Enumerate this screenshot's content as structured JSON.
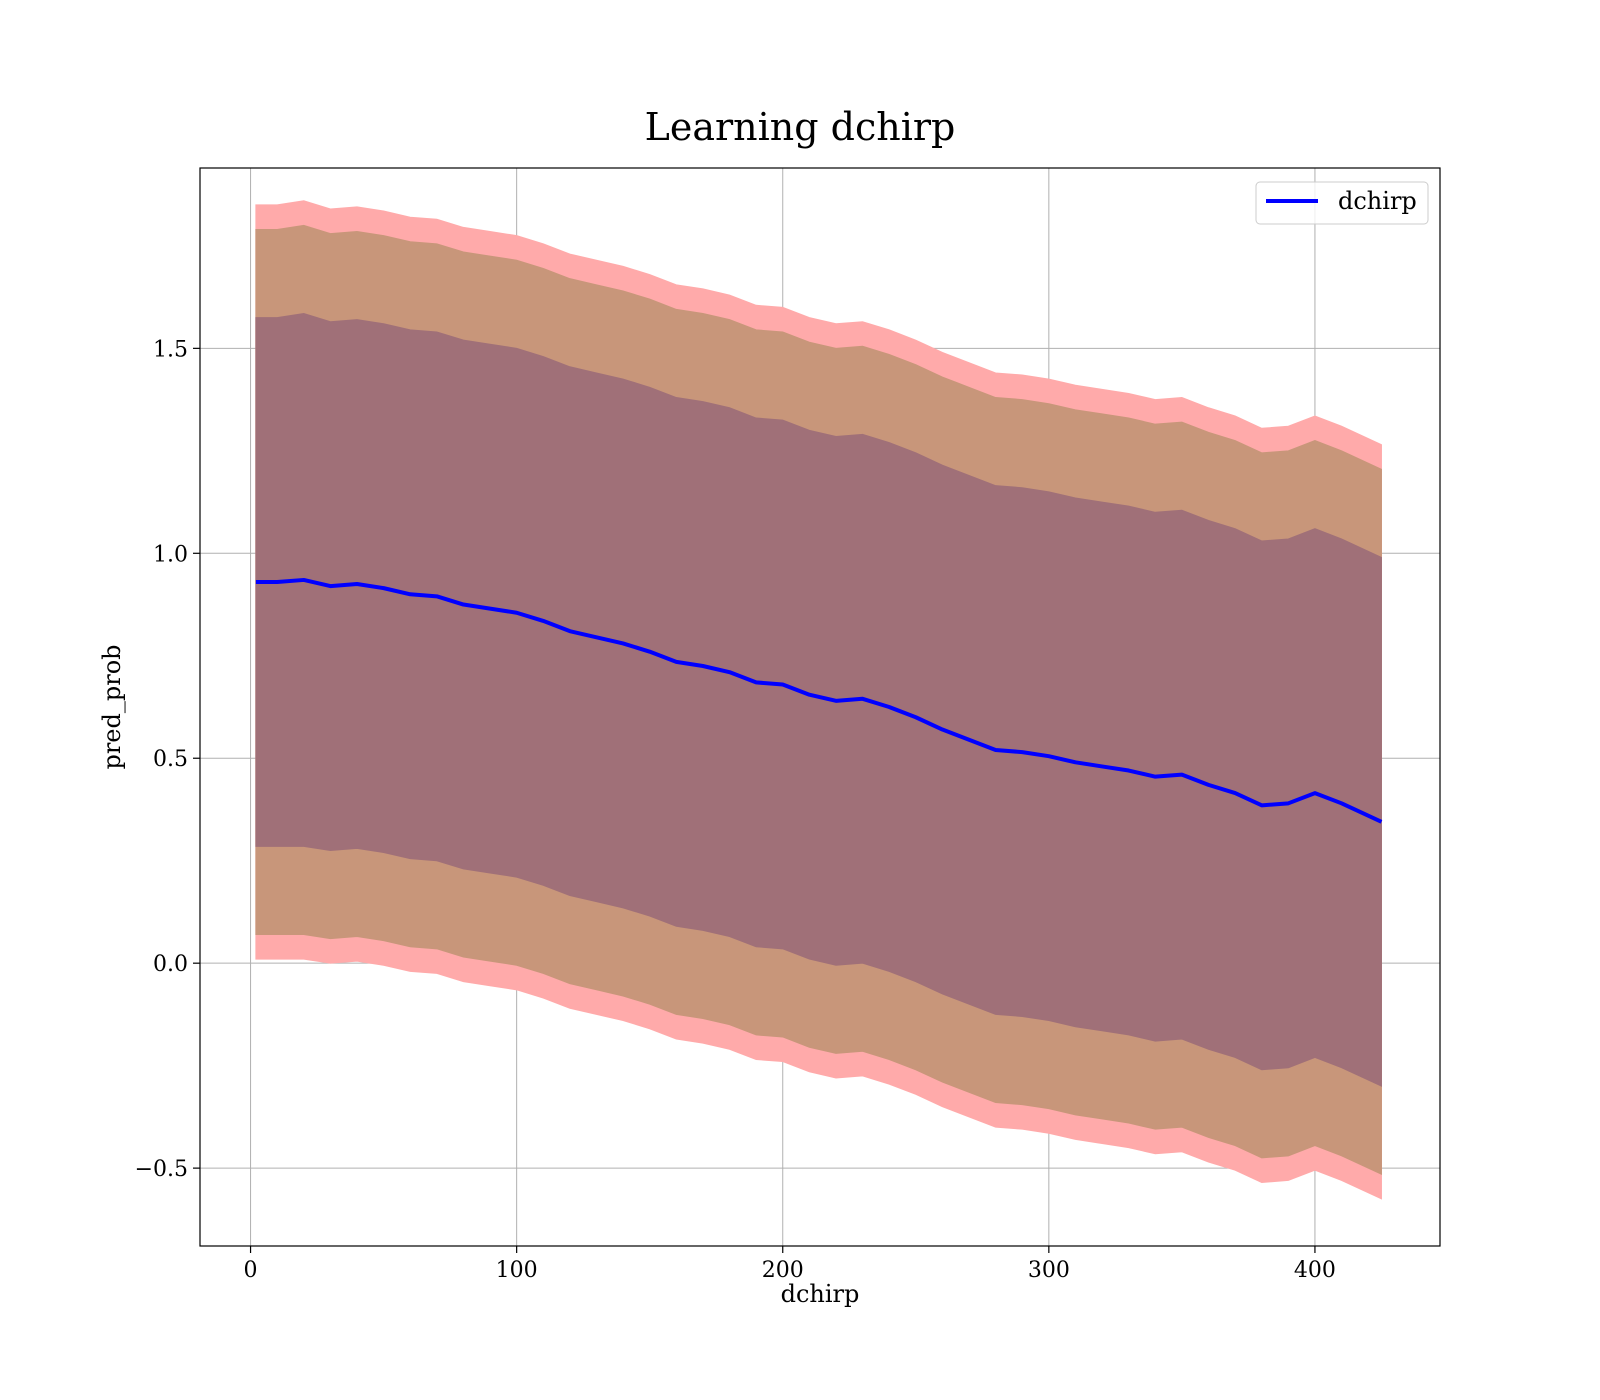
{
  "chart_data": {
    "type": "line",
    "title": "Learning dchirp",
    "xlabel": "dchirp",
    "ylabel": "pred_prob",
    "xlim": [
      -19,
      447
    ],
    "ylim": [
      -0.69,
      1.94
    ],
    "xticks": [
      0,
      100,
      200,
      300,
      400
    ],
    "xtick_labels": [
      "0",
      "100",
      "200",
      "300",
      "400"
    ],
    "yticks": [
      -0.5,
      0.0,
      0.5,
      1.0,
      1.5
    ],
    "ytick_labels": [
      "−0.5",
      "0.0",
      "0.5",
      "1.0",
      "1.5"
    ],
    "grid": true,
    "legend": {
      "position": "top-right",
      "entries": [
        "dchirp"
      ]
    },
    "colors": {
      "mean_line": "#0000ff",
      "band_outer": "#ffaaaa",
      "band_middle": "#c8967a",
      "band_inner": "#a07078",
      "grid": "#b0b0b0"
    },
    "series": [
      {
        "name": "dchirp",
        "x": [
          2,
          10,
          20,
          30,
          40,
          50,
          60,
          70,
          80,
          90,
          100,
          110,
          120,
          130,
          140,
          150,
          160,
          170,
          180,
          190,
          200,
          210,
          220,
          230,
          240,
          250,
          260,
          270,
          280,
          290,
          300,
          310,
          320,
          330,
          340,
          350,
          360,
          370,
          380,
          390,
          400,
          410,
          425
        ],
        "y": [
          0.93,
          0.93,
          0.935,
          0.92,
          0.925,
          0.915,
          0.9,
          0.895,
          0.875,
          0.865,
          0.855,
          0.835,
          0.81,
          0.795,
          0.78,
          0.76,
          0.735,
          0.725,
          0.71,
          0.685,
          0.68,
          0.655,
          0.64,
          0.645,
          0.625,
          0.6,
          0.57,
          0.545,
          0.52,
          0.515,
          0.505,
          0.49,
          0.48,
          0.47,
          0.455,
          0.46,
          0.435,
          0.415,
          0.385,
          0.39,
          0.415,
          0.39,
          0.345
        ]
      }
    ],
    "bands": [
      {
        "x": [
          2,
          10,
          20,
          30,
          40,
          50,
          60,
          70,
          80,
          90,
          100,
          110,
          120,
          130,
          140,
          150,
          160,
          170,
          180,
          190,
          200,
          210,
          220,
          230,
          240,
          250,
          260,
          270,
          280,
          290,
          300,
          310,
          320,
          330,
          340,
          350,
          360,
          370,
          380,
          390,
          400,
          410,
          425
        ],
        "upper": [
          1.85,
          1.85,
          1.86,
          1.84,
          1.845,
          1.835,
          1.82,
          1.815,
          1.795,
          1.785,
          1.775,
          1.755,
          1.73,
          1.715,
          1.7,
          1.68,
          1.655,
          1.645,
          1.63,
          1.605,
          1.6,
          1.575,
          1.56,
          1.565,
          1.545,
          1.52,
          1.49,
          1.465,
          1.44,
          1.435,
          1.425,
          1.41,
          1.4,
          1.39,
          1.375,
          1.38,
          1.355,
          1.335,
          1.305,
          1.31,
          1.335,
          1.31,
          1.265
        ],
        "lower": [
          0.01,
          0.01,
          0.01,
          0.0,
          0.005,
          -0.005,
          -0.02,
          -0.025,
          -0.045,
          -0.055,
          -0.065,
          -0.085,
          -0.11,
          -0.125,
          -0.14,
          -0.16,
          -0.185,
          -0.195,
          -0.21,
          -0.235,
          -0.24,
          -0.265,
          -0.28,
          -0.275,
          -0.295,
          -0.32,
          -0.35,
          -0.375,
          -0.4,
          -0.405,
          -0.415,
          -0.43,
          -0.44,
          -0.45,
          -0.465,
          -0.46,
          -0.485,
          -0.505,
          -0.535,
          -0.53,
          -0.505,
          -0.53,
          -0.575
        ]
      },
      {
        "x": [
          2,
          10,
          20,
          30,
          40,
          50,
          60,
          70,
          80,
          90,
          100,
          110,
          120,
          130,
          140,
          150,
          160,
          170,
          180,
          190,
          200,
          210,
          220,
          230,
          240,
          250,
          260,
          270,
          280,
          290,
          300,
          310,
          320,
          330,
          340,
          350,
          360,
          370,
          380,
          390,
          400,
          410,
          425
        ],
        "upper": [
          1.79,
          1.79,
          1.8,
          1.78,
          1.785,
          1.775,
          1.76,
          1.755,
          1.735,
          1.725,
          1.715,
          1.695,
          1.67,
          1.655,
          1.64,
          1.62,
          1.595,
          1.585,
          1.57,
          1.545,
          1.54,
          1.515,
          1.5,
          1.505,
          1.485,
          1.46,
          1.43,
          1.405,
          1.38,
          1.375,
          1.365,
          1.35,
          1.34,
          1.33,
          1.315,
          1.32,
          1.295,
          1.275,
          1.245,
          1.25,
          1.275,
          1.25,
          1.205
        ],
        "lower": [
          0.07,
          0.07,
          0.07,
          0.06,
          0.065,
          0.055,
          0.04,
          0.035,
          0.015,
          0.005,
          -0.005,
          -0.025,
          -0.05,
          -0.065,
          -0.08,
          -0.1,
          -0.125,
          -0.135,
          -0.15,
          -0.175,
          -0.18,
          -0.205,
          -0.22,
          -0.215,
          -0.235,
          -0.26,
          -0.29,
          -0.315,
          -0.34,
          -0.345,
          -0.355,
          -0.37,
          -0.38,
          -0.39,
          -0.405,
          -0.4,
          -0.425,
          -0.445,
          -0.475,
          -0.47,
          -0.445,
          -0.47,
          -0.515
        ]
      },
      {
        "x": [
          2,
          10,
          20,
          30,
          40,
          50,
          60,
          70,
          80,
          90,
          100,
          110,
          120,
          130,
          140,
          150,
          160,
          170,
          180,
          190,
          200,
          210,
          220,
          230,
          240,
          250,
          260,
          270,
          280,
          290,
          300,
          310,
          320,
          330,
          340,
          350,
          360,
          370,
          380,
          390,
          400,
          410,
          425
        ],
        "upper": [
          1.575,
          1.575,
          1.585,
          1.565,
          1.57,
          1.56,
          1.545,
          1.54,
          1.52,
          1.51,
          1.5,
          1.48,
          1.455,
          1.44,
          1.425,
          1.405,
          1.38,
          1.37,
          1.355,
          1.33,
          1.325,
          1.3,
          1.285,
          1.29,
          1.27,
          1.245,
          1.215,
          1.19,
          1.165,
          1.16,
          1.15,
          1.135,
          1.125,
          1.115,
          1.1,
          1.105,
          1.08,
          1.06,
          1.03,
          1.035,
          1.06,
          1.035,
          0.99
        ],
        "lower": [
          0.285,
          0.285,
          0.285,
          0.275,
          0.28,
          0.27,
          0.255,
          0.25,
          0.23,
          0.22,
          0.21,
          0.19,
          0.165,
          0.15,
          0.135,
          0.115,
          0.09,
          0.08,
          0.065,
          0.04,
          0.035,
          0.01,
          -0.005,
          0.0,
          -0.02,
          -0.045,
          -0.075,
          -0.1,
          -0.125,
          -0.13,
          -0.14,
          -0.155,
          -0.165,
          -0.175,
          -0.19,
          -0.185,
          -0.21,
          -0.23,
          -0.26,
          -0.255,
          -0.23,
          -0.255,
          -0.3
        ]
      }
    ]
  }
}
